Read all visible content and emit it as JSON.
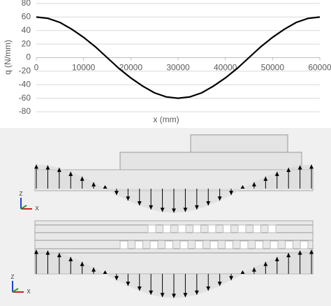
{
  "chart_data": {
    "type": "line",
    "x_label": "x (mm)",
    "y_label": "q (N/mm)",
    "x": [
      0,
      2500,
      5000,
      7500,
      10000,
      12500,
      15000,
      17500,
      20000,
      22500,
      25000,
      27500,
      30000,
      32500,
      35000,
      37500,
      40000,
      42500,
      45000,
      47500,
      50000,
      52500,
      55000,
      57500,
      60000
    ],
    "values": [
      60,
      58,
      52,
      42,
      30,
      16,
      0,
      -16,
      -30,
      -42,
      -52,
      -58,
      -60,
      -58,
      -52,
      -42,
      -30,
      -16,
      0,
      16,
      30,
      42,
      52,
      58,
      60
    ],
    "color": "#000000",
    "xlim": [
      0,
      60000
    ],
    "xticks": [
      0,
      10000,
      20000,
      30000,
      40000,
      50000,
      60000
    ],
    "ylim": [
      -80,
      80
    ],
    "yticks": [
      -80,
      -60,
      -40,
      -20,
      0,
      20,
      40,
      60,
      80
    ],
    "grid": true
  },
  "diagrams": [
    {
      "triad": {
        "z": "Z",
        "x": "X"
      }
    },
    {
      "triad": {
        "z": "Z",
        "x": "X"
      }
    }
  ]
}
